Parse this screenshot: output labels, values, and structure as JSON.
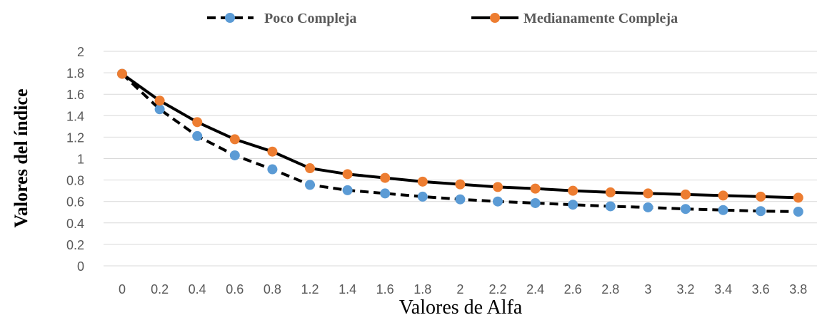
{
  "chart_data": {
    "type": "line",
    "categories": [
      "0",
      "0.2",
      "0.4",
      "0.6",
      "0.8",
      "1.2",
      "1.4",
      "1.6",
      "1.8",
      "2",
      "2.2",
      "2.4",
      "2.6",
      "2.8",
      "3",
      "3.2",
      "3.4",
      "3.6",
      "3.8"
    ],
    "series": [
      {
        "name": "Poco Compleja",
        "values": [
          1.79,
          1.46,
          1.21,
          1.03,
          0.9,
          0.755,
          0.705,
          0.675,
          0.645,
          0.62,
          0.6,
          0.585,
          0.57,
          0.555,
          0.545,
          0.53,
          0.52,
          0.51,
          0.505
        ],
        "line_color": "#000000",
        "line_style": "dashed",
        "marker_color": "#5B9BD5"
      },
      {
        "name": "Medianamente Compleja",
        "values": [
          1.79,
          1.54,
          1.34,
          1.18,
          1.065,
          0.91,
          0.855,
          0.82,
          0.785,
          0.76,
          0.735,
          0.72,
          0.7,
          0.685,
          0.675,
          0.665,
          0.655,
          0.645,
          0.635
        ],
        "line_color": "#000000",
        "line_style": "solid",
        "marker_color": "#ED7D31"
      }
    ],
    "xlabel": "Valores de Alfa",
    "ylabel": "Valores del índice",
    "ylim": [
      0,
      2
    ],
    "yticks": [
      "0",
      "0.2",
      "0.4",
      "0.6",
      "0.8",
      "1",
      "1.2",
      "1.4",
      "1.6",
      "1.8",
      "2"
    ],
    "grid": true,
    "legend_position": "top"
  }
}
